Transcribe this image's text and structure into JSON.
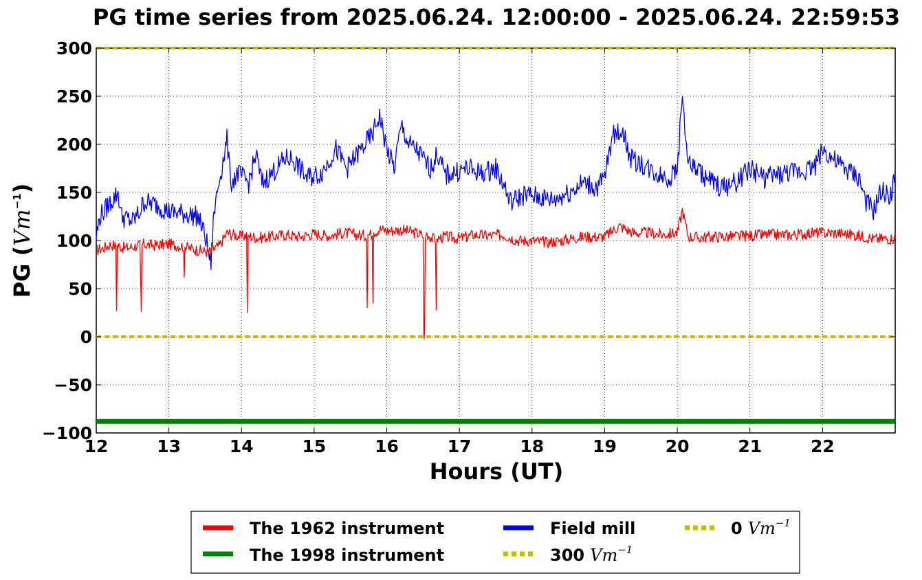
{
  "chart_data": {
    "type": "line",
    "title": "PG time series from 2025.06.24. 12:00:00 - 2025.06.24. 22:59:53",
    "xlabel": "Hours (UT)",
    "ylabel_main": "PG (",
    "ylabel_unit": "Vm",
    "ylabel_exp": "−1",
    "ylabel_close": ")",
    "xlim": [
      12,
      23
    ],
    "ylim": [
      -100,
      300
    ],
    "grid": true,
    "legend_placement": "bottom-center",
    "xticks": [
      12,
      13,
      14,
      15,
      16,
      17,
      18,
      19,
      20,
      21,
      22
    ],
    "xtick_labels": [
      "12",
      "13",
      "14",
      "15",
      "16",
      "17",
      "18",
      "19",
      "20",
      "21",
      "22"
    ],
    "yticks": [
      -100,
      -50,
      0,
      50,
      100,
      150,
      200,
      250,
      300
    ],
    "ytick_labels": [
      "−100",
      "−50",
      "0",
      "50",
      "100",
      "150",
      "200",
      "250",
      "300"
    ],
    "series": [
      {
        "name": "The 1962 instrument",
        "color": "#ff0000",
        "style": "solid",
        "x": [
          12.0,
          12.1,
          12.2,
          12.27,
          12.28,
          12.29,
          12.4,
          12.6,
          12.62,
          12.63,
          12.64,
          12.8,
          13.0,
          13.2,
          13.21,
          13.22,
          13.23,
          13.4,
          13.55,
          13.7,
          13.8,
          14.0,
          14.07,
          14.08,
          14.09,
          14.2,
          14.4,
          14.6,
          14.8,
          15.0,
          15.2,
          15.4,
          15.6,
          15.72,
          15.73,
          15.74,
          15.8,
          15.81,
          15.82,
          15.9,
          16.0,
          16.2,
          16.4,
          16.5,
          16.51,
          16.52,
          16.53,
          16.54,
          16.6,
          16.67,
          16.68,
          16.69,
          16.8,
          17.0,
          17.2,
          17.4,
          17.6,
          17.8,
          18.0,
          18.2,
          18.4,
          18.6,
          18.8,
          19.0,
          19.2,
          19.4,
          19.6,
          19.8,
          20.0,
          20.07,
          20.15,
          20.3,
          20.5,
          20.7,
          21.0,
          21.3,
          21.6,
          21.9,
          22.2,
          22.5,
          22.7,
          23.0
        ],
        "values": [
          90,
          92,
          96,
          94,
          27,
          95,
          92,
          95,
          26,
          94,
          96,
          95,
          96,
          94,
          61,
          95,
          93,
          90,
          88,
          95,
          108,
          104,
          106,
          25,
          105,
          103,
          104,
          106,
          104,
          107,
          105,
          108,
          106,
          105,
          30,
          106,
          107,
          35,
          108,
          112,
          110,
          111,
          108,
          105,
          2,
          3,
          100,
          108,
          104,
          100,
          28,
          102,
          104,
          102,
          106,
          105,
          106,
          100,
          100,
          98,
          100,
          103,
          104,
          104,
          115,
          108,
          108,
          106,
          108,
          132,
          104,
          103,
          104,
          104,
          105,
          106,
          106,
          108,
          108,
          105,
          102,
          102
        ]
      },
      {
        "name": "The 1998 instrument",
        "color": "#008000",
        "style": "solid",
        "x": [
          12,
          23
        ],
        "values": [
          -88,
          -88
        ]
      },
      {
        "name": "Field mill",
        "color": "#0000ff",
        "style": "solid",
        "x": [
          12.0,
          12.05,
          12.1,
          12.2,
          12.3,
          12.35,
          12.5,
          12.6,
          12.65,
          12.8,
          13.0,
          13.2,
          13.4,
          13.5,
          13.58,
          13.62,
          13.7,
          13.8,
          13.85,
          13.95,
          14.1,
          14.2,
          14.28,
          14.4,
          14.6,
          14.7,
          14.9,
          15.1,
          15.3,
          15.45,
          15.6,
          15.8,
          15.9,
          16.0,
          16.1,
          16.2,
          16.3,
          16.4,
          16.6,
          16.7,
          16.8,
          17.0,
          17.1,
          17.3,
          17.5,
          17.6,
          17.7,
          17.9,
          18.1,
          18.3,
          18.5,
          18.7,
          18.9,
          19.0,
          19.1,
          19.25,
          19.35,
          19.5,
          19.7,
          19.9,
          20.0,
          20.07,
          20.15,
          20.25,
          20.4,
          20.6,
          20.8,
          21.0,
          21.2,
          21.5,
          21.7,
          21.9,
          22.0,
          22.2,
          22.4,
          22.5,
          22.6,
          22.7,
          22.8,
          22.95,
          23.0
        ],
        "values": [
          105,
          125,
          130,
          140,
          150,
          125,
          120,
          130,
          140,
          138,
          130,
          128,
          125,
          105,
          75,
          130,
          165,
          205,
          160,
          170,
          160,
          190,
          160,
          168,
          185,
          185,
          165,
          170,
          195,
          175,
          190,
          210,
          230,
          195,
          175,
          220,
          200,
          195,
          175,
          190,
          168,
          172,
          175,
          170,
          175,
          160,
          140,
          148,
          145,
          142,
          150,
          160,
          155,
          165,
          208,
          215,
          185,
          180,
          170,
          165,
          175,
          250,
          180,
          175,
          165,
          155,
          160,
          175,
          165,
          170,
          172,
          178,
          195,
          180,
          170,
          165,
          140,
          130,
          150,
          148,
          168
        ]
      }
    ],
    "reference_lines": [
      {
        "name_prefix": "300",
        "name_unit": "Vm",
        "name_exp": "−1",
        "value": 300,
        "color": "#bfbf00",
        "style": "dotted"
      },
      {
        "name_prefix": "0",
        "name_unit": "Vm",
        "name_exp": "−1",
        "value": 0,
        "color": "#bfbf00",
        "style": "dotted"
      }
    ]
  }
}
